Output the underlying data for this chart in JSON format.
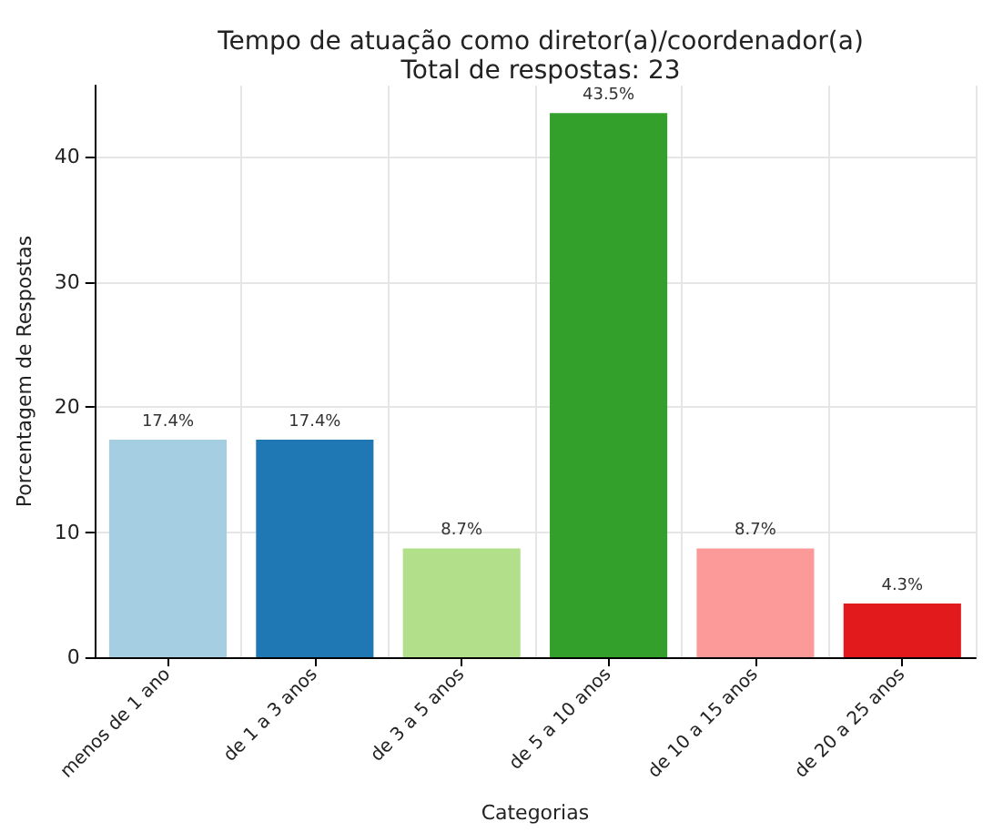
{
  "chart_data": {
    "type": "bar",
    "title": "Tempo de atuação como diretor(a)/coordenador(a)",
    "subtitle": "Total de respostas: 23",
    "xlabel": "Categorias",
    "ylabel": "Porcentagem de Respostas",
    "categories": [
      "menos de 1 ano",
      "de 1 a 3 anos",
      "de 3 a 5 anos",
      "de 5 a 10 anos",
      "de 10 a 15 anos",
      "de 20 a 25 anos"
    ],
    "values": [
      17.4,
      17.4,
      8.7,
      43.5,
      8.7,
      4.3
    ],
    "colors": [
      "#a6cee3",
      "#1f78b4",
      "#b2df8a",
      "#33a02c",
      "#fb9a99",
      "#e31a1c"
    ],
    "value_labels": [
      "17.4%",
      "17.4%",
      "8.7%",
      "43.5%",
      "8.7%",
      "4.3%"
    ],
    "ylim": [
      0,
      45.7
    ],
    "yticks": [
      0,
      10,
      20,
      30,
      40
    ],
    "grid": true
  }
}
